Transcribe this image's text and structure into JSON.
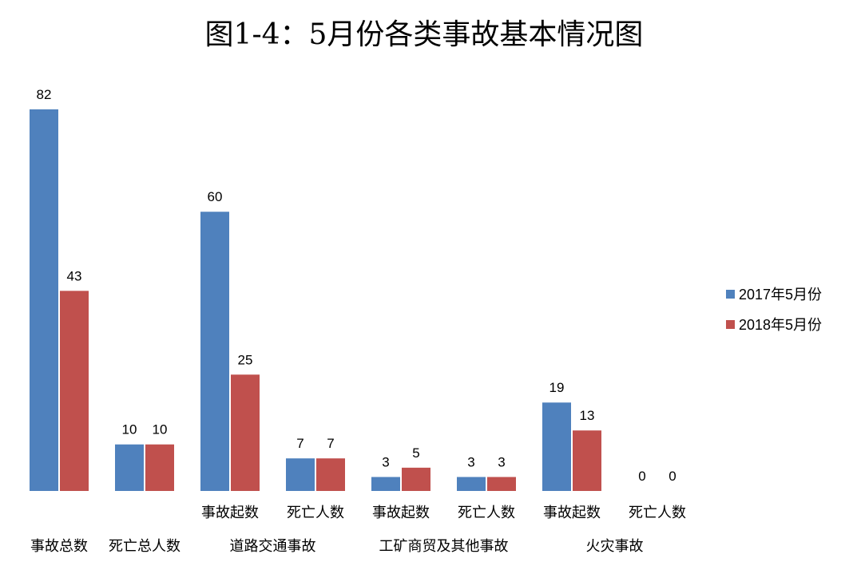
{
  "chart_data": {
    "type": "bar",
    "title": "图1-4：5月份各类事故基本情况图",
    "categories": [
      "事故总数",
      "死亡总人数",
      "事故起数",
      "死亡人数",
      "事故起数",
      "死亡人数",
      "事故起数",
      "死亡人数"
    ],
    "groups": [
      {
        "label": "",
        "span": [
          0,
          0
        ]
      },
      {
        "label": "",
        "span": [
          1,
          1
        ]
      },
      {
        "label": "道路交通事故",
        "span": [
          2,
          3
        ]
      },
      {
        "label": "工矿商贸及其他事故",
        "span": [
          4,
          5
        ]
      },
      {
        "label": "火灾事故",
        "span": [
          6,
          7
        ]
      }
    ],
    "series": [
      {
        "name": "2017年5月份",
        "color": "#4F81BD",
        "values": [
          82,
          10,
          60,
          7,
          3,
          3,
          19,
          0
        ]
      },
      {
        "name": "2018年5月份",
        "color": "#C0504D",
        "values": [
          43,
          10,
          25,
          7,
          5,
          3,
          13,
          0
        ]
      }
    ],
    "ylim": [
      0,
      82
    ],
    "grid": false,
    "legend_position": "right"
  }
}
